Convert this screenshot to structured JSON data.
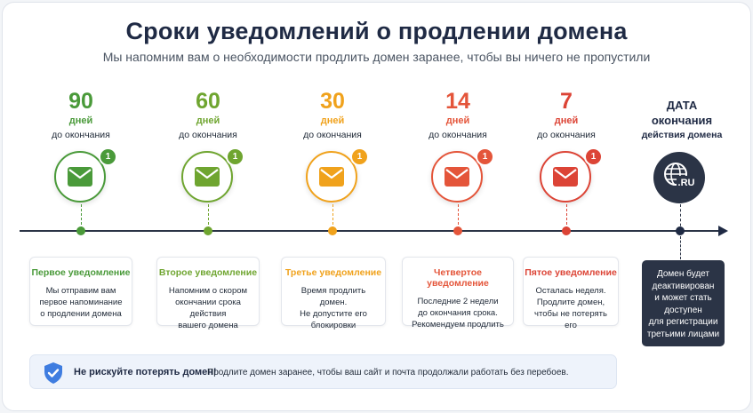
{
  "title": "Сроки уведомлений о продлении домена",
  "subtitle": "Мы напомним вам о необходимости продлить домен заранее, чтобы вы ничего не пропустили",
  "stages": [
    {
      "number": "90",
      "days_label": "дней",
      "until_label": "до окончания",
      "badge": "1",
      "color": "#4a9a3a",
      "box_title": "Первое уведомление",
      "box_text": [
        "Мы отправим вам",
        "первое напоминание",
        "о продлении домена"
      ]
    },
    {
      "number": "60",
      "days_label": "дней",
      "until_label": "до окончания",
      "badge": "1",
      "color": "#6fa530",
      "box_title": "Второе уведомление",
      "box_text": [
        "Напомним о скором",
        "окончании срока действия",
        "вашего домена"
      ]
    },
    {
      "number": "30",
      "days_label": "дней",
      "until_label": "до окончания",
      "badge": "1",
      "color": "#f0a21c",
      "box_title": "Третье уведомление",
      "box_text": [
        "Время продлить домен.",
        "Не допустите его",
        "блокировки"
      ]
    },
    {
      "number": "14",
      "days_label": "дней",
      "until_label": "до окончания",
      "badge": "1",
      "color": "#e4553a",
      "box_title": "Четвертое уведомление",
      "box_text": [
        "Последние 2 недели",
        "до окончания срока.",
        "Рекомендуем продлить"
      ]
    },
    {
      "number": "7",
      "days_label": "дней",
      "until_label": "до окончания",
      "badge": "1",
      "color": "#dc4436",
      "box_title": "Пятое уведомление",
      "box_text": [
        "Осталась неделя.",
        "Продлите домен,",
        "чтобы не потерять его"
      ]
    }
  ],
  "end": {
    "title_line1": "ДАТА",
    "title_line2": "окончания",
    "subtitle": "действия домена",
    "icon_text": ".RU",
    "icon": "globe-icon",
    "box_text": [
      "Домен будет",
      "деактивирован",
      "и может стать",
      "доступен",
      "для регистрации",
      "третьими лицами"
    ]
  },
  "banner": {
    "icon": "shield-check-icon",
    "bold": "Не рискуйте потерять домен!",
    "text": "Продлите домен заранее, чтобы ваш сайт и почта продолжали работать без перебоев."
  },
  "colors": {
    "dark": "#2b3446",
    "text": "#1f2a44"
  }
}
